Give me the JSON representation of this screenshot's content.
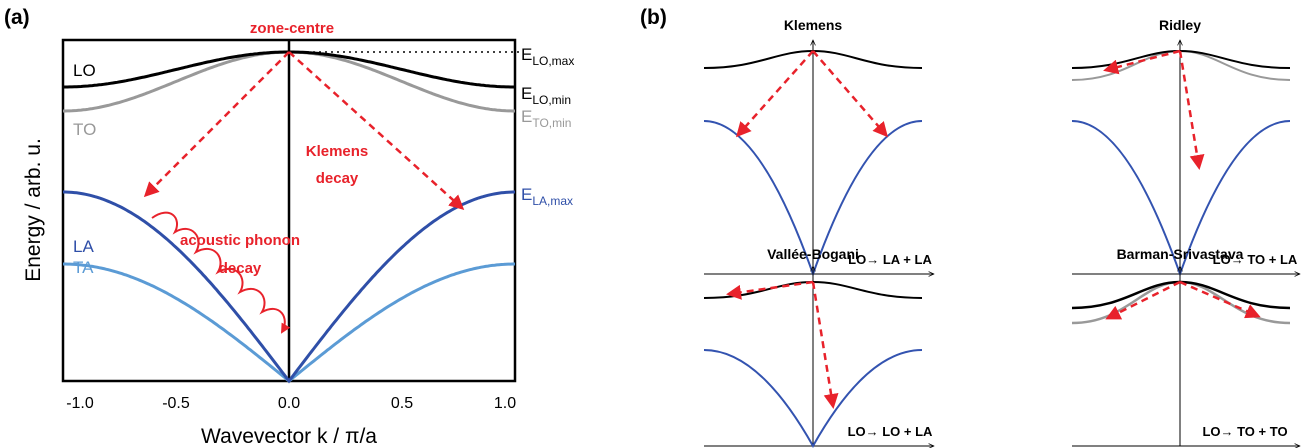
{
  "panel_a": {
    "label": "(a)",
    "x_axis_title": "Wavevector k / π/a",
    "y_axis_title": "Energy / arb. u.",
    "x_ticks": [
      "-1.0",
      "-0.5",
      "0.0",
      "0.5",
      "1.0"
    ],
    "branches": {
      "lo": "LO",
      "to": "TO",
      "la": "LA",
      "ta": "TA"
    },
    "energy_labels": {
      "lo_max": {
        "main": "E",
        "sub": "LO,max"
      },
      "lo_min": {
        "main": "E",
        "sub": "LO,min"
      },
      "to_min": {
        "main": "E",
        "sub": "TO,min"
      },
      "la_max": {
        "main": "E",
        "sub": "LA,max"
      }
    },
    "annotations": {
      "zone_centre": "zone-centre",
      "klemens_line1": "Klemens",
      "klemens_line2": "decay",
      "acoustic_line1": "acoustic phonon",
      "acoustic_line2": "decay"
    }
  },
  "panel_b": {
    "label": "(b)",
    "subpanels": {
      "klemens": {
        "title": "Klemens",
        "process": "LO→ LA + LA"
      },
      "ridley": {
        "title": "Ridley",
        "process": "LO→ TO + LA"
      },
      "vallee": {
        "title": "Vallée-Bogani",
        "process": "LO→ LO + LA"
      },
      "barman": {
        "title": "Barman-Srivastava",
        "process": "LO→ TO + TO"
      }
    }
  },
  "colors": {
    "lo": "#000000",
    "to": "#999999",
    "la": "#2f4fa8",
    "ta": "#5b9bd5",
    "arrow_red": "#e8222b"
  }
}
